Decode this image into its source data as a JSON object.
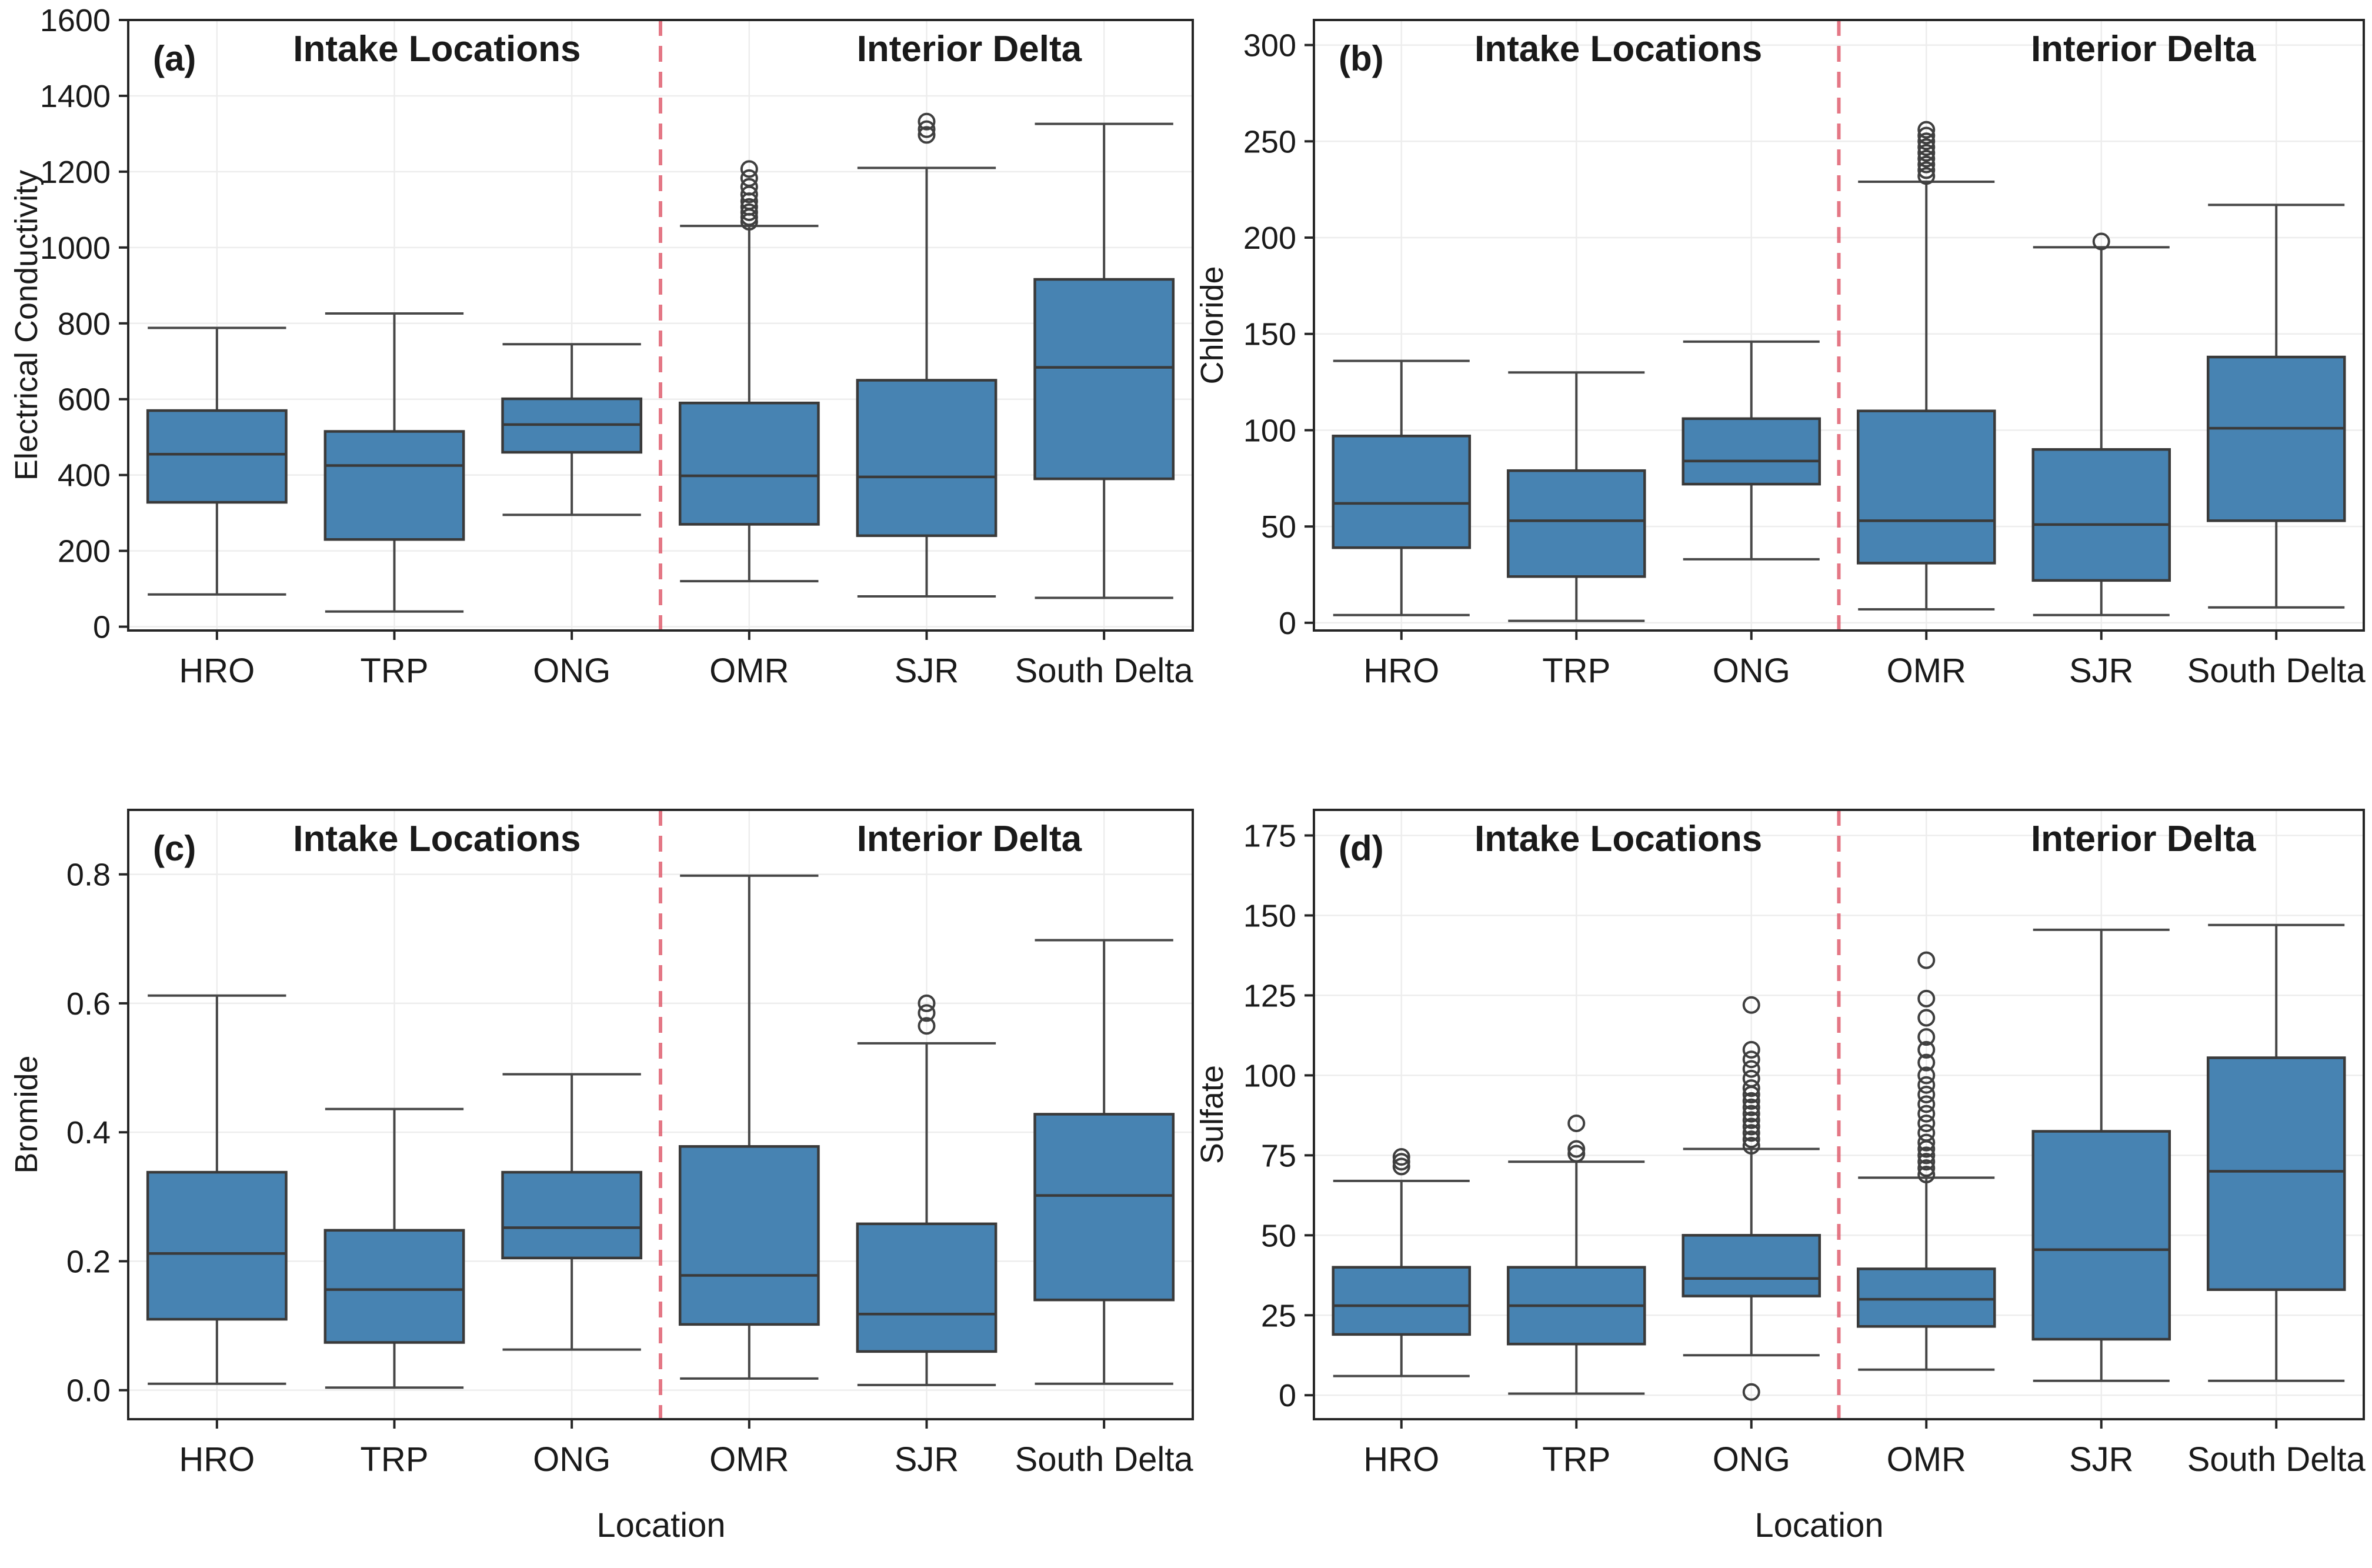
{
  "figure": {
    "xlabel": "Location",
    "section_titles": [
      "Intake Locations",
      "Interior Delta"
    ],
    "categories": [
      "HRO",
      "TRP",
      "ONG",
      "OMR",
      "SJR",
      "South Delta"
    ],
    "colors": {
      "box_fill": "#4783b2",
      "box_edge": "#3a3a3a",
      "median": "#3a3a3a",
      "whisker": "#474747",
      "outlier": "#3f3f3f",
      "separator": "#e06070",
      "grid": "#ededed",
      "spine": "#262626",
      "text": "#1a1a1a"
    }
  },
  "chart_data": [
    {
      "type": "box",
      "panel_label": "(a)",
      "ylabel": "Electrical Conductivity",
      "ylim": [
        -10,
        1600
      ],
      "yticks": [
        0,
        200,
        400,
        600,
        800,
        1000,
        1200,
        1400,
        1600
      ],
      "ytick_labels": [
        "0",
        "200",
        "400",
        "600",
        "800",
        "1000",
        "1200",
        "1400",
        "1600"
      ],
      "groups": [
        {
          "name": "HRO",
          "whislo": 85,
          "q1": 328,
          "med": 455,
          "q3": 570,
          "whishi": 788,
          "outliers": []
        },
        {
          "name": "TRP",
          "whislo": 40,
          "q1": 230,
          "med": 425,
          "q3": 515,
          "whishi": 826,
          "outliers": []
        },
        {
          "name": "ONG",
          "whislo": 295,
          "q1": 460,
          "med": 533,
          "q3": 601,
          "whishi": 745,
          "outliers": []
        },
        {
          "name": "OMR",
          "whislo": 120,
          "q1": 270,
          "med": 398,
          "q3": 590,
          "whishi": 1057,
          "outliers": [
            1068,
            1080,
            1093,
            1107,
            1122,
            1140,
            1160,
            1183,
            1207
          ]
        },
        {
          "name": "SJR",
          "whislo": 80,
          "q1": 240,
          "med": 395,
          "q3": 650,
          "whishi": 1210,
          "outliers": [
            1297,
            1312,
            1332
          ]
        },
        {
          "name": "South Delta",
          "whislo": 76,
          "q1": 390,
          "med": 684,
          "q3": 916,
          "whishi": 1326,
          "outliers": []
        }
      ]
    },
    {
      "type": "box",
      "panel_label": "(b)",
      "ylabel": "Chloride",
      "ylim": [
        -4,
        313
      ],
      "yticks": [
        0,
        50,
        100,
        150,
        200,
        250,
        300
      ],
      "ytick_labels": [
        "0",
        "50",
        "100",
        "150",
        "200",
        "250",
        "300"
      ],
      "groups": [
        {
          "name": "HRO",
          "whislo": 4,
          "q1": 39,
          "q3": 97,
          "med": 62,
          "whishi": 136,
          "outliers": []
        },
        {
          "name": "TRP",
          "whislo": 1,
          "q1": 24,
          "q3": 79,
          "med": 53,
          "whishi": 130,
          "outliers": []
        },
        {
          "name": "ONG",
          "whislo": 33,
          "q1": 72,
          "q3": 106,
          "med": 84,
          "whishi": 146,
          "outliers": []
        },
        {
          "name": "OMR",
          "whislo": 7,
          "q1": 31,
          "q3": 110,
          "med": 53,
          "whishi": 229,
          "outliers": [
            232,
            235,
            238,
            241,
            244,
            247,
            250,
            253,
            256
          ]
        },
        {
          "name": "SJR",
          "whislo": 4,
          "q1": 22,
          "q3": 90,
          "med": 51,
          "whishi": 195,
          "outliers": [
            198
          ]
        },
        {
          "name": "South Delta",
          "whislo": 8,
          "q1": 53,
          "q3": 138,
          "med": 101,
          "whishi": 217,
          "outliers": []
        }
      ]
    },
    {
      "type": "box",
      "panel_label": "(c)",
      "ylabel": "Bromide",
      "ylim": [
        -0.045,
        0.9
      ],
      "yticks": [
        0.0,
        0.2,
        0.4,
        0.6,
        0.8
      ],
      "ytick_labels": [
        "0.0",
        "0.2",
        "0.4",
        "0.6",
        "0.8"
      ],
      "groups": [
        {
          "name": "HRO",
          "whislo": 0.01,
          "q1": 0.11,
          "med": 0.212,
          "q3": 0.338,
          "whishi": 0.612,
          "outliers": []
        },
        {
          "name": "TRP",
          "whislo": 0.004,
          "q1": 0.074,
          "med": 0.156,
          "q3": 0.248,
          "whishi": 0.436,
          "outliers": []
        },
        {
          "name": "ONG",
          "whislo": 0.063,
          "q1": 0.205,
          "med": 0.252,
          "q3": 0.338,
          "whishi": 0.49,
          "outliers": []
        },
        {
          "name": "OMR",
          "whislo": 0.018,
          "q1": 0.102,
          "med": 0.178,
          "q3": 0.378,
          "whishi": 0.798,
          "outliers": []
        },
        {
          "name": "SJR",
          "whislo": 0.008,
          "q1": 0.06,
          "med": 0.118,
          "q3": 0.258,
          "whishi": 0.538,
          "outliers": [
            0.565,
            0.585,
            0.6
          ]
        },
        {
          "name": "South Delta",
          "whislo": 0.01,
          "q1": 0.14,
          "med": 0.302,
          "q3": 0.428,
          "whishi": 0.698,
          "outliers": []
        }
      ]
    },
    {
      "type": "box",
      "panel_label": "(d)",
      "ylabel": "Sulfate",
      "ylim": [
        -7.5,
        183
      ],
      "yticks": [
        0,
        25,
        50,
        75,
        100,
        125,
        150,
        175
      ],
      "ytick_labels": [
        "0",
        "25",
        "50",
        "75",
        "100",
        "125",
        "150",
        "175"
      ],
      "groups": [
        {
          "name": "HRO",
          "whislo": 6,
          "q1": 19,
          "med": 28,
          "q3": 40,
          "whishi": 67,
          "outliers": [
            71.5,
            73,
            74.5
          ]
        },
        {
          "name": "TRP",
          "whislo": 0.5,
          "q1": 16,
          "med": 28,
          "q3": 40,
          "whishi": 73,
          "outliers": [
            75.5,
            77,
            85
          ]
        },
        {
          "name": "ONG",
          "whislo": 12.5,
          "q1": 31,
          "med": 36.5,
          "q3": 50,
          "whishi": 77,
          "outliers": [
            1,
            78,
            80,
            82,
            84,
            86,
            88,
            90,
            92,
            94,
            96,
            99,
            102,
            105,
            108,
            122
          ]
        },
        {
          "name": "OMR",
          "whislo": 8,
          "q1": 21.5,
          "med": 30,
          "q3": 39.5,
          "whishi": 68,
          "outliers": [
            69,
            71,
            73,
            75,
            77,
            79,
            82,
            85,
            88,
            91,
            94,
            97,
            100,
            104,
            108,
            112,
            118,
            124,
            136
          ]
        },
        {
          "name": "SJR",
          "whislo": 4.5,
          "q1": 17.5,
          "med": 45.5,
          "q3": 82.5,
          "whishi": 145.5,
          "outliers": []
        },
        {
          "name": "South Delta",
          "whislo": 4.5,
          "q1": 33,
          "med": 70,
          "q3": 105.5,
          "whishi": 147,
          "outliers": []
        }
      ]
    }
  ]
}
